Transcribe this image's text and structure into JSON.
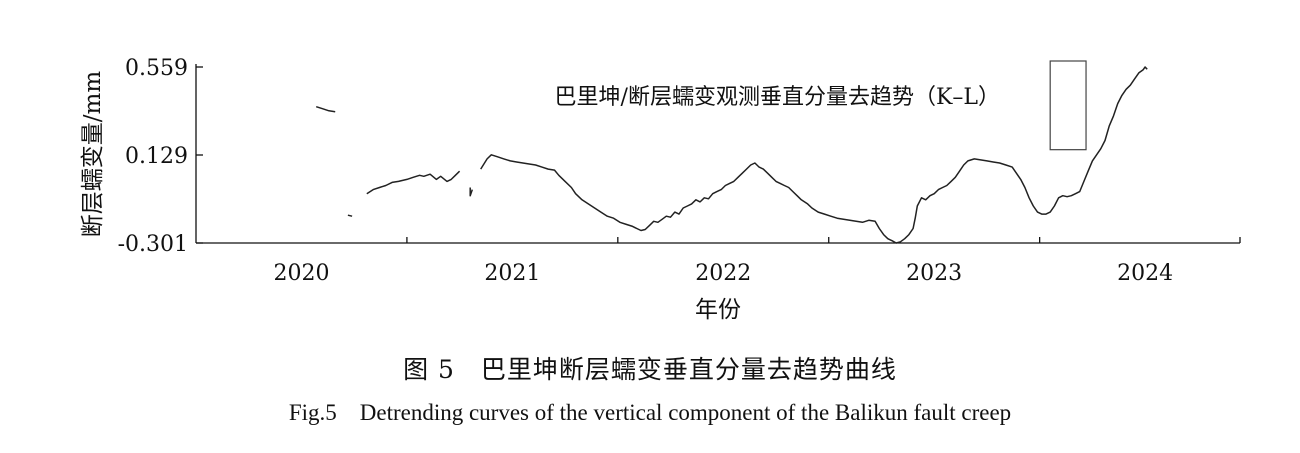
{
  "caption": {
    "zh": "图 5　巴里坤断层蠕变垂直分量去趋势曲线",
    "en": "Fig.5　Detrending curves of the vertical component of the Balikun fault creep"
  },
  "chart_data": {
    "type": "line",
    "title": "",
    "xlabel": "年份",
    "ylabel": "断层蠕变量/mm",
    "xlim": [
      2019.5,
      2024.45
    ],
    "ylim": [
      -0.301,
      0.559
    ],
    "x_ticks": [
      2020,
      2021,
      2022,
      2023,
      2024
    ],
    "x_tick_labels": [
      "2020",
      "2021",
      "2022",
      "2023",
      "2024"
    ],
    "y_ticks": [
      0.559,
      0.129,
      -0.301
    ],
    "y_tick_labels": [
      "0.559",
      "0.129",
      "-0.301"
    ],
    "grid": false,
    "line_color": "#222222",
    "annotation": {
      "text": "巴里坤/断层蠕变观测垂直分量去趋势（K–L）",
      "box_x": [
        2023.55,
        2023.72
      ],
      "box_y": [
        0.155,
        0.559
      ]
    },
    "series": [
      {
        "name": "巴里坤/断层蠕变观测垂直分量去趋势（K–L）",
        "segments": [
          [
            [
              2020.07,
              0.365
            ],
            [
              2020.1,
              0.355
            ],
            [
              2020.13,
              0.345
            ],
            [
              2020.16,
              0.34
            ]
          ],
          [
            [
              2020.22,
              -0.165
            ],
            [
              2020.24,
              -0.17
            ]
          ],
          [
            [
              2020.31,
              -0.06
            ],
            [
              2020.34,
              -0.04
            ],
            [
              2020.37,
              -0.03
            ],
            [
              2020.4,
              -0.02
            ],
            [
              2020.43,
              -0.005
            ],
            [
              2020.46,
              0.0
            ],
            [
              2020.5,
              0.01
            ],
            [
              2020.53,
              0.02
            ],
            [
              2020.56,
              0.03
            ],
            [
              2020.58,
              0.025
            ],
            [
              2020.61,
              0.035
            ],
            [
              2020.64,
              0.01
            ],
            [
              2020.66,
              0.025
            ],
            [
              2020.69,
              0.0
            ],
            [
              2020.71,
              0.01
            ],
            [
              2020.73,
              0.03
            ],
            [
              2020.75,
              0.05
            ]
          ],
          [
            [
              2020.8,
              -0.03
            ],
            [
              2020.8,
              -0.07
            ],
            [
              2020.81,
              -0.04
            ]
          ],
          [
            [
              2020.85,
              0.06
            ],
            [
              2020.88,
              0.11
            ],
            [
              2020.9,
              0.13
            ],
            [
              2020.93,
              0.12
            ],
            [
              2020.96,
              0.11
            ],
            [
              2020.99,
              0.1
            ],
            [
              2021.02,
              0.095
            ],
            [
              2021.05,
              0.09
            ],
            [
              2021.08,
              0.085
            ],
            [
              2021.11,
              0.08
            ],
            [
              2021.14,
              0.07
            ],
            [
              2021.17,
              0.06
            ],
            [
              2021.2,
              0.055
            ],
            [
              2021.22,
              0.03
            ],
            [
              2021.25,
              0.0
            ],
            [
              2021.28,
              -0.03
            ],
            [
              2021.3,
              -0.06
            ],
            [
              2021.33,
              -0.09
            ],
            [
              2021.36,
              -0.11
            ],
            [
              2021.39,
              -0.13
            ],
            [
              2021.42,
              -0.15
            ],
            [
              2021.45,
              -0.17
            ],
            [
              2021.48,
              -0.18
            ],
            [
              2021.51,
              -0.2
            ],
            [
              2021.54,
              -0.21
            ],
            [
              2021.57,
              -0.22
            ],
            [
              2021.59,
              -0.23
            ],
            [
              2021.61,
              -0.24
            ],
            [
              2021.63,
              -0.235
            ],
            [
              2021.65,
              -0.215
            ],
            [
              2021.67,
              -0.195
            ],
            [
              2021.69,
              -0.2
            ],
            [
              2021.71,
              -0.185
            ],
            [
              2021.73,
              -0.17
            ],
            [
              2021.75,
              -0.175
            ],
            [
              2021.77,
              -0.15
            ],
            [
              2021.79,
              -0.16
            ],
            [
              2021.81,
              -0.13
            ],
            [
              2021.83,
              -0.12
            ],
            [
              2021.85,
              -0.11
            ],
            [
              2021.87,
              -0.09
            ],
            [
              2021.89,
              -0.1
            ],
            [
              2021.91,
              -0.08
            ],
            [
              2021.93,
              -0.085
            ],
            [
              2021.95,
              -0.06
            ],
            [
              2021.97,
              -0.05
            ],
            [
              2021.99,
              -0.04
            ],
            [
              2022.01,
              -0.02
            ],
            [
              2022.03,
              -0.01
            ],
            [
              2022.05,
              0.0
            ],
            [
              2022.07,
              0.02
            ],
            [
              2022.09,
              0.04
            ],
            [
              2022.11,
              0.06
            ],
            [
              2022.13,
              0.08
            ],
            [
              2022.15,
              0.09
            ],
            [
              2022.17,
              0.07
            ],
            [
              2022.19,
              0.06
            ],
            [
              2022.21,
              0.04
            ],
            [
              2022.23,
              0.02
            ],
            [
              2022.25,
              0.0
            ],
            [
              2022.27,
              -0.01
            ],
            [
              2022.29,
              -0.02
            ],
            [
              2022.31,
              -0.03
            ],
            [
              2022.33,
              -0.05
            ],
            [
              2022.35,
              -0.07
            ],
            [
              2022.37,
              -0.09
            ],
            [
              2022.4,
              -0.11
            ],
            [
              2022.42,
              -0.13
            ],
            [
              2022.45,
              -0.15
            ],
            [
              2022.48,
              -0.16
            ],
            [
              2022.51,
              -0.17
            ],
            [
              2022.54,
              -0.18
            ],
            [
              2022.57,
              -0.185
            ],
            [
              2022.6,
              -0.19
            ],
            [
              2022.63,
              -0.195
            ],
            [
              2022.66,
              -0.2
            ],
            [
              2022.69,
              -0.19
            ],
            [
              2022.72,
              -0.195
            ],
            [
              2022.74,
              -0.23
            ],
            [
              2022.76,
              -0.26
            ],
            [
              2022.78,
              -0.28
            ],
            [
              2022.8,
              -0.29
            ],
            [
              2022.82,
              -0.301
            ],
            [
              2022.84,
              -0.295
            ],
            [
              2022.86,
              -0.28
            ],
            [
              2022.88,
              -0.26
            ],
            [
              2022.9,
              -0.23
            ],
            [
              2022.91,
              -0.18
            ],
            [
              2022.92,
              -0.12
            ],
            [
              2022.94,
              -0.08
            ],
            [
              2022.96,
              -0.09
            ],
            [
              2022.98,
              -0.07
            ],
            [
              2023.0,
              -0.06
            ],
            [
              2023.02,
              -0.04
            ],
            [
              2023.04,
              -0.03
            ],
            [
              2023.06,
              -0.02
            ],
            [
              2023.08,
              0.0
            ],
            [
              2023.1,
              0.02
            ],
            [
              2023.12,
              0.05
            ],
            [
              2023.14,
              0.08
            ],
            [
              2023.16,
              0.1
            ],
            [
              2023.19,
              0.11
            ],
            [
              2023.22,
              0.105
            ],
            [
              2023.25,
              0.1
            ],
            [
              2023.28,
              0.095
            ],
            [
              2023.31,
              0.09
            ],
            [
              2023.34,
              0.08
            ],
            [
              2023.37,
              0.07
            ],
            [
              2023.39,
              0.04
            ],
            [
              2023.41,
              0.01
            ],
            [
              2023.43,
              -0.03
            ],
            [
              2023.45,
              -0.08
            ],
            [
              2023.47,
              -0.12
            ],
            [
              2023.49,
              -0.15
            ],
            [
              2023.51,
              -0.16
            ],
            [
              2023.53,
              -0.16
            ],
            [
              2023.55,
              -0.15
            ],
            [
              2023.57,
              -0.12
            ],
            [
              2023.59,
              -0.08
            ],
            [
              2023.61,
              -0.07
            ],
            [
              2023.63,
              -0.075
            ],
            [
              2023.65,
              -0.07
            ],
            [
              2023.67,
              -0.06
            ],
            [
              2023.69,
              -0.05
            ],
            [
              2023.71,
              0.0
            ],
            [
              2023.73,
              0.05
            ],
            [
              2023.75,
              0.1
            ],
            [
              2023.77,
              0.13
            ],
            [
              2023.79,
              0.16
            ],
            [
              2023.81,
              0.2
            ],
            [
              2023.83,
              0.27
            ],
            [
              2023.85,
              0.32
            ],
            [
              2023.87,
              0.38
            ],
            [
              2023.89,
              0.42
            ],
            [
              2023.91,
              0.45
            ],
            [
              2023.93,
              0.47
            ],
            [
              2023.95,
              0.5
            ],
            [
              2023.97,
              0.53
            ],
            [
              2023.99,
              0.545
            ],
            [
              2024.0,
              0.559
            ],
            [
              2024.01,
              0.548
            ]
          ]
        ]
      }
    ]
  }
}
